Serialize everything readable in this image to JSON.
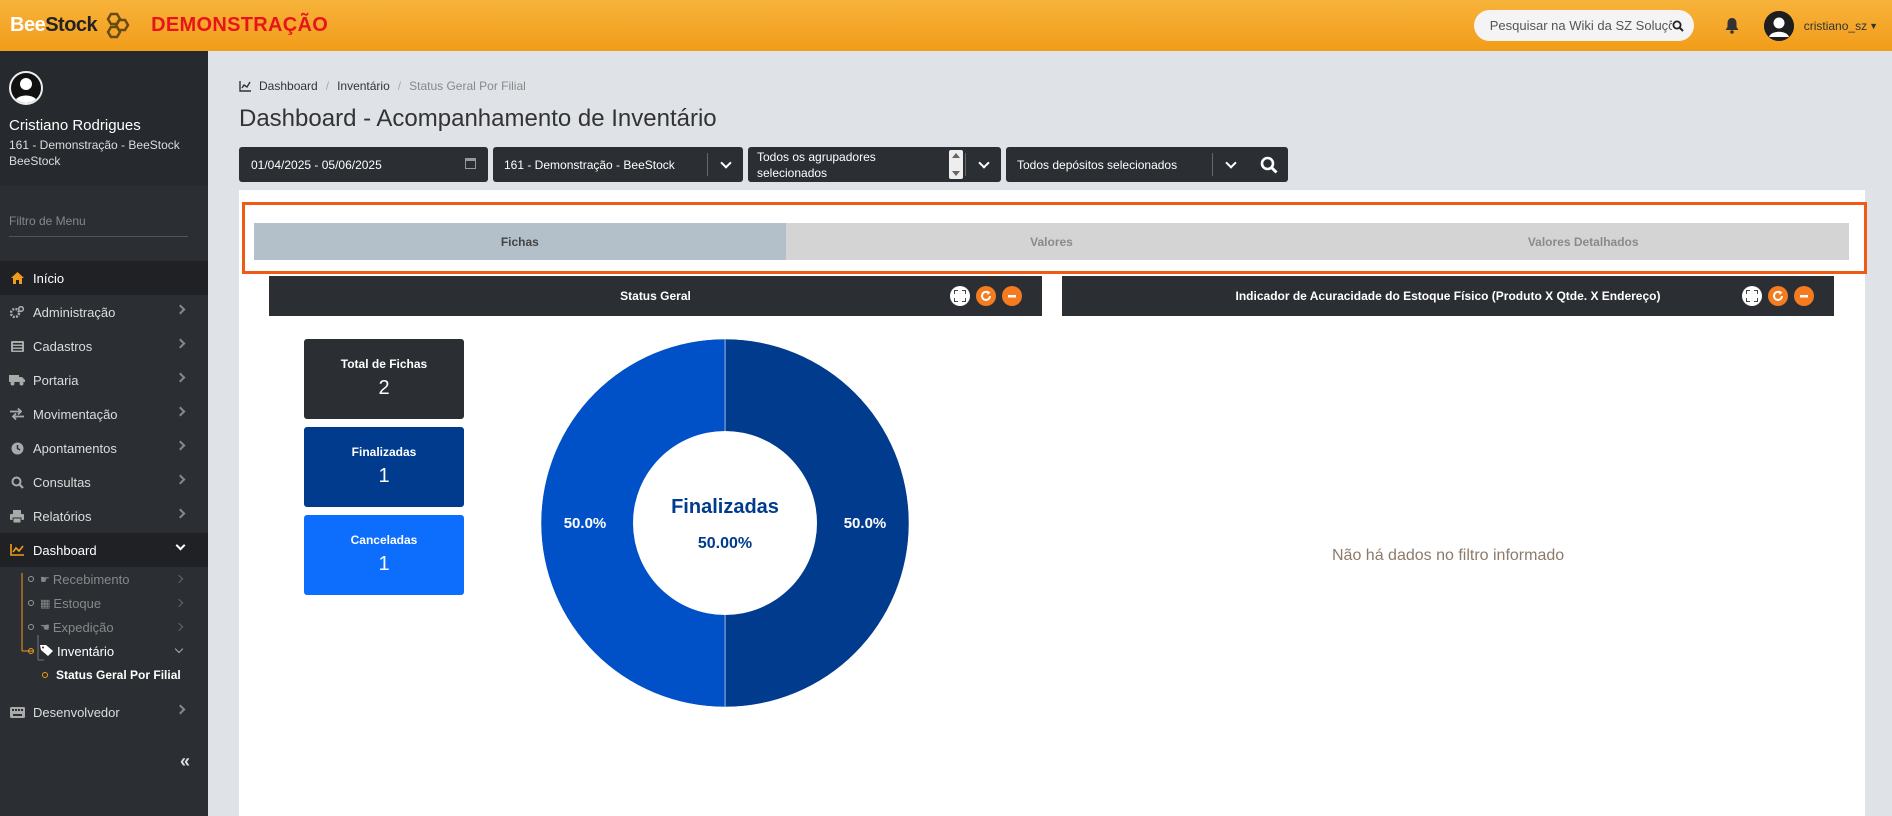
{
  "topbar": {
    "logo_bee": "Bee",
    "logo_stock": "Stock",
    "demo_label": "DEMONSTRAÇÃO",
    "search_placeholder": "Pesquisar na Wiki da SZ Soluções",
    "username": "cristiano_sz",
    "accent_color": "#f29c1a"
  },
  "profile": {
    "name": "Cristiano Rodrigues",
    "company": "161 - Demonstração - BeeStock BeeStock"
  },
  "sidebar": {
    "filter_placeholder": "Filtro de Menu",
    "items": [
      {
        "label": "Início",
        "icon": "home-icon"
      },
      {
        "label": "Administração",
        "icon": "cogs-icon"
      },
      {
        "label": "Cadastros",
        "icon": "list-icon"
      },
      {
        "label": "Portaria",
        "icon": "truck-icon"
      },
      {
        "label": "Movimentação",
        "icon": "exchange-icon"
      },
      {
        "label": "Apontamentos",
        "icon": "clock-icon"
      },
      {
        "label": "Consultas",
        "icon": "search-icon"
      },
      {
        "label": "Relatórios",
        "icon": "print-icon"
      },
      {
        "label": "Dashboard",
        "icon": "chart-line-icon"
      },
      {
        "label": "Desenvolvedor",
        "icon": "keyboard-icon"
      }
    ],
    "dashboard_sub": [
      {
        "label": "Recebimento",
        "icon": "hand-icon"
      },
      {
        "label": "Estoque",
        "icon": "grid-icon"
      },
      {
        "label": "Expedição",
        "icon": "hand-out-icon"
      },
      {
        "label": "Inventário",
        "icon": "tags-icon"
      }
    ],
    "inventario_sub": [
      {
        "label": "Status Geral Por Filial"
      }
    ]
  },
  "breadcrumb": [
    "Dashboard",
    "Inventário",
    "Status Geral Por Filial"
  ],
  "page_title": "Dashboard - Acompanhamento de Inventário",
  "filters": {
    "date_range": "01/04/2025 - 05/06/2025",
    "branch": "161 - Demonstração - BeeStock",
    "groupers_line1": "Todos os agrupadores",
    "groupers_line2": "selecionados",
    "deposits": "Todos depósitos selecionados"
  },
  "tabs": [
    {
      "label": "Fichas",
      "active": true
    },
    {
      "label": "Valores",
      "active": false
    },
    {
      "label": "Valores Detalhados",
      "active": false
    }
  ],
  "widgets": {
    "status_title": "Status Geral",
    "accuracy_title": "Indicador de Acuracidade do Estoque Físico (Produto X Qtde. X Endereço)",
    "no_data": "Não há dados no filtro informado"
  },
  "cards": [
    {
      "label": "Total de Fichas",
      "value": "2",
      "color": "#2b2e33"
    },
    {
      "label": "Finalizadas",
      "value": "1",
      "color": "#003b8e"
    },
    {
      "label": "Canceladas",
      "value": "1",
      "color": "#0d6efd"
    }
  ],
  "chart_data": {
    "type": "pie",
    "donut": true,
    "categories": [
      "Finalizadas",
      "Canceladas"
    ],
    "values": [
      50.0,
      50.0
    ],
    "slice_labels": [
      "50.0%",
      "50.0%"
    ],
    "colors": [
      "#003b8e",
      "#0050c8"
    ],
    "center_label": "Finalizadas",
    "center_value": "50.00%"
  }
}
